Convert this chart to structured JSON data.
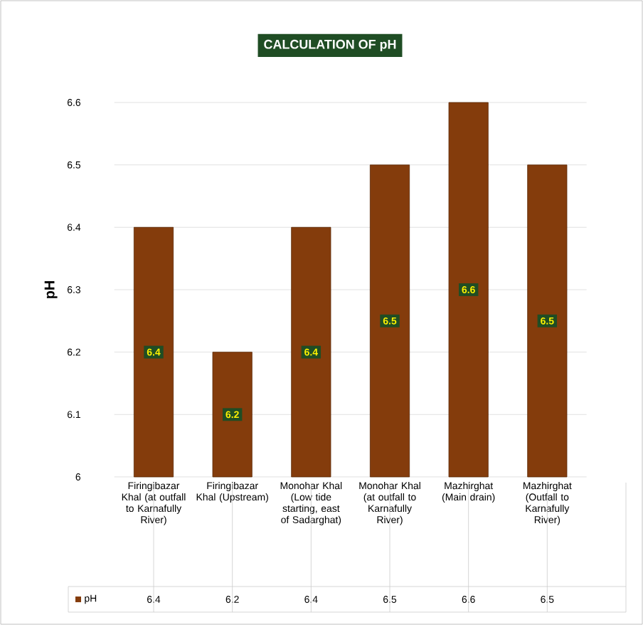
{
  "chart_data": {
    "type": "bar",
    "title": "CALCULATION OF pH",
    "ylabel": "pH",
    "categories": [
      "Firingibazar Khal (at outfall to Karnafully River)",
      "Firingibazar Khal (Upstream)",
      "Monohar Khal (Low tide starting, east of Sadarghat)",
      "Monohar Khal (at outfall to Karnafully River)",
      "Mazhirghat (Main drain)",
      "Mazhirghat (Outfall to Karnafully River)"
    ],
    "series": [
      {
        "name": "pH",
        "color": "#843c0c",
        "values": [
          6.4,
          6.2,
          6.4,
          6.5,
          6.6,
          6.5
        ],
        "value_labels": [
          "6.4",
          "6.2",
          "6.4",
          "6.5",
          "6.6",
          "6.5"
        ]
      }
    ],
    "ylim": [
      6,
      6.6
    ],
    "yticks": [
      6,
      6.1,
      6.2,
      6.3,
      6.4,
      6.5,
      6.6
    ],
    "grid": "y",
    "legend": "bottom"
  }
}
